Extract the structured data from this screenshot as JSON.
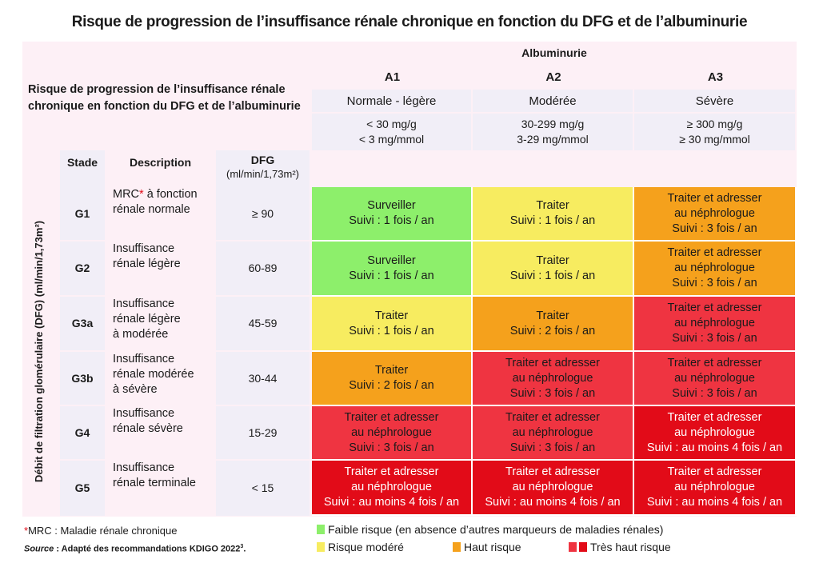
{
  "title": "Risque de progression de l’insuffisance rénale chronique en fonction du DFG et de l’albuminurie",
  "header_left": [
    "Risque de progression de l’insuffisance rénale",
    "chronique en fonction du DFG et de l’albuminurie"
  ],
  "albuminurie_label": "Albuminurie",
  "vertical_label": "Débit de filtration glomérulaire (DFG) (ml/min/1,73m²)",
  "column_headers": {
    "stade": "Stade",
    "description": "Description",
    "dfg": "DFG",
    "dfg_unit": "(ml/min/1,73m²)"
  },
  "albumin_columns": [
    {
      "code": "A1",
      "label": "Normale - légère",
      "range": [
        "< 30 mg/g",
        "< 3 mg/mmol"
      ]
    },
    {
      "code": "A2",
      "label": "Modérée",
      "range": [
        "30-299 mg/g",
        "3-29 mg/mmol"
      ]
    },
    {
      "code": "A3",
      "label": "Sévère",
      "range": [
        "≥ 300 mg/g",
        "≥ 30 mg/mmol"
      ]
    }
  ],
  "colors": {
    "low": "#8def6b",
    "moderate": "#f7ec60",
    "high": "#f5a11c",
    "very_high_1": "#ef3441",
    "very_high_2": "#e20b18"
  },
  "rows": [
    {
      "stage": "G1",
      "description": [
        "MRC",
        "*",
        " à fonction",
        "rénale normale"
      ],
      "dfg": "≥ 90",
      "cells": [
        {
          "level": "low",
          "lines": [
            "Surveiller",
            "Suivi : 1 fois / an"
          ]
        },
        {
          "level": "moderate",
          "lines": [
            "Traiter",
            "Suivi : 1 fois / an"
          ]
        },
        {
          "level": "high",
          "lines": [
            "Traiter et adresser",
            "au néphrologue",
            "Suivi : 3 fois / an"
          ]
        }
      ]
    },
    {
      "stage": "G2",
      "description": [
        "Insuffisance",
        "rénale légère"
      ],
      "dfg": "60-89",
      "cells": [
        {
          "level": "low",
          "lines": [
            "Surveiller",
            "Suivi : 1 fois / an"
          ]
        },
        {
          "level": "moderate",
          "lines": [
            "Traiter",
            "Suivi : 1 fois / an"
          ]
        },
        {
          "level": "high",
          "lines": [
            "Traiter et adresser",
            "au néphrologue",
            "Suivi : 3 fois / an"
          ]
        }
      ]
    },
    {
      "stage": "G3a",
      "description": [
        "Insuffisance",
        "rénale légère",
        "à modérée"
      ],
      "dfg": "45-59",
      "cells": [
        {
          "level": "moderate",
          "lines": [
            "Traiter",
            "Suivi : 1 fois / an"
          ]
        },
        {
          "level": "high",
          "lines": [
            "Traiter",
            "Suivi : 2 fois / an"
          ]
        },
        {
          "level": "very_high_1",
          "lines": [
            "Traiter et adresser",
            "au néphrologue",
            "Suivi : 3 fois / an"
          ]
        }
      ]
    },
    {
      "stage": "G3b",
      "description": [
        "Insuffisance",
        "rénale modérée",
        "à sévère"
      ],
      "dfg": "30-44",
      "cells": [
        {
          "level": "high",
          "lines": [
            "Traiter",
            "Suivi : 2 fois / an"
          ]
        },
        {
          "level": "very_high_1",
          "lines": [
            "Traiter et adresser",
            "au néphrologue",
            "Suivi : 3 fois / an"
          ]
        },
        {
          "level": "very_high_1",
          "lines": [
            "Traiter et adresser",
            "au néphrologue",
            "Suivi : 3 fois / an"
          ]
        }
      ]
    },
    {
      "stage": "G4",
      "description": [
        "Insuffisance",
        "rénale sévère"
      ],
      "dfg": "15-29",
      "cells": [
        {
          "level": "very_high_1",
          "lines": [
            "Traiter et adresser",
            "au néphrologue",
            "Suivi : 3 fois / an"
          ]
        },
        {
          "level": "very_high_1",
          "lines": [
            "Traiter et adresser",
            "au néphrologue",
            "Suivi : 3 fois / an"
          ]
        },
        {
          "level": "very_high_2",
          "lines": [
            "Traiter et adresser",
            "au néphrologue",
            "Suivi : au moins 4 fois / an"
          ]
        }
      ]
    },
    {
      "stage": "G5",
      "description": [
        "Insuffisance",
        "rénale terminale"
      ],
      "dfg": "< 15",
      "cells": [
        {
          "level": "very_high_2",
          "lines": [
            "Traiter et adresser",
            "au néphrologue",
            "Suivi : au moins 4 fois / an"
          ]
        },
        {
          "level": "very_high_2",
          "lines": [
            "Traiter et adresser",
            "au néphrologue",
            "Suivi : au moins 4 fois / an"
          ]
        },
        {
          "level": "very_high_2",
          "lines": [
            "Traiter et adresser",
            "au néphrologue",
            "Suivi : au moins 4 fois / an"
          ]
        }
      ]
    }
  ],
  "footnote": {
    "star": "*",
    "text": "MRC : Maladie rénale chronique"
  },
  "source": {
    "label": "Source",
    "text": " : Adapté des recommandations KDIGO 2022",
    "sup": "3",
    "end": "."
  },
  "legend": {
    "low": "Faible risque (en absence d’autres marqueurs de maladies rénales)",
    "moderate": "Risque modéré",
    "high": "Haut risque",
    "very_high": "Très haut risque"
  }
}
